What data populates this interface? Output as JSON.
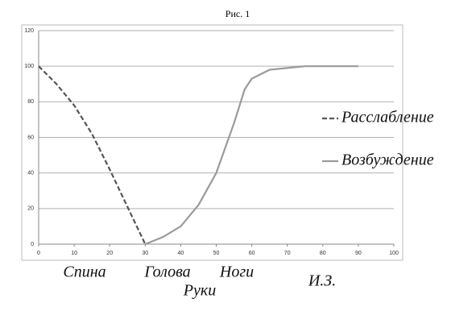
{
  "chart_data": {
    "type": "line",
    "title": "Рис. 1",
    "series": [
      {
        "name": "Расслабление",
        "color": "#555555",
        "dash": true,
        "x": [
          0,
          5,
          10,
          15,
          20,
          25,
          30
        ],
        "values": [
          100,
          90,
          78,
          62,
          42,
          21,
          0
        ]
      },
      {
        "name": "Возбуждение",
        "color": "#9a9a9a",
        "dash": false,
        "x": [
          30,
          35,
          40,
          45,
          50,
          55,
          58,
          60,
          65,
          70,
          75,
          80,
          90
        ],
        "values": [
          0,
          4,
          10,
          22,
          40,
          68,
          87,
          93,
          98,
          99,
          100,
          100,
          100
        ]
      }
    ],
    "xlim": [
      0,
      100
    ],
    "xticks": [
      0,
      10,
      20,
      30,
      40,
      50,
      60,
      70,
      80,
      90,
      100
    ],
    "ylim": [
      0,
      120
    ],
    "yticks": [
      0,
      20,
      40,
      60,
      80,
      100,
      120
    ],
    "grid": true,
    "annotations": [
      "Спина",
      "Голова",
      "Руки",
      "Ноги",
      "И.З."
    ]
  }
}
